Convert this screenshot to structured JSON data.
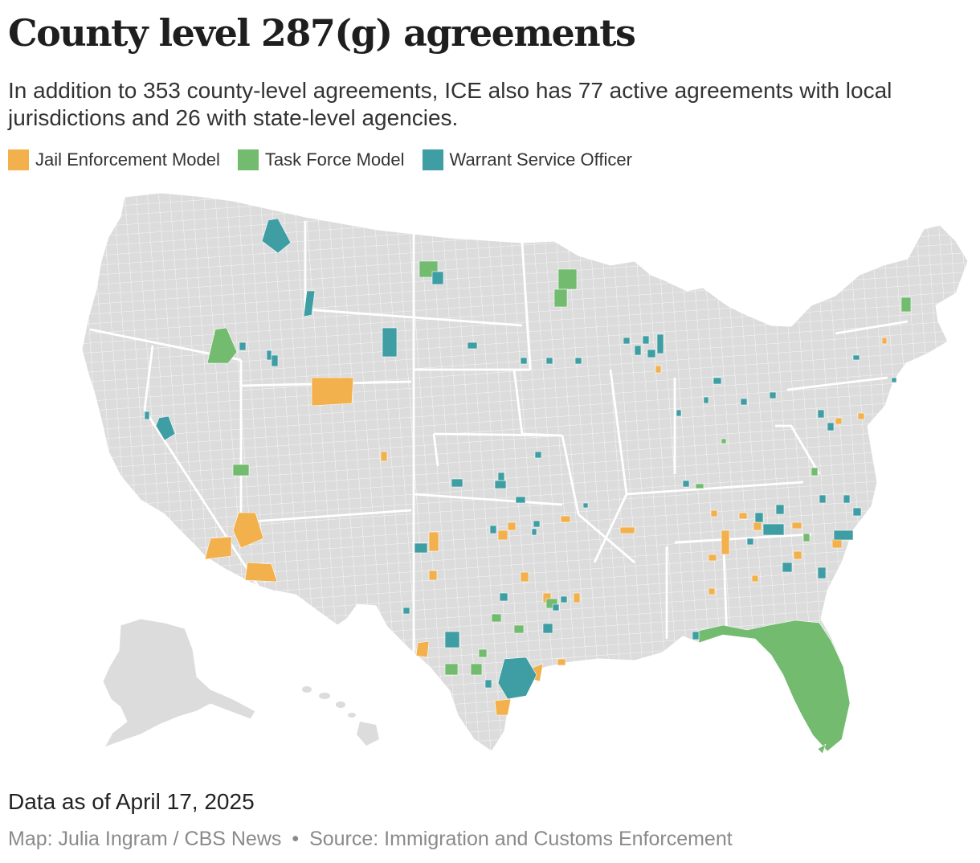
{
  "header": {
    "title": "County level 287(g) agreements",
    "subtitle": "In addition to 353 county-level agreements, ICE also has 77 active agreements with local jurisdictions and 26 with state-level agencies."
  },
  "legend": {
    "items": [
      {
        "label": "Jail Enforcement Model",
        "color": "#f2b14c"
      },
      {
        "label": "Task Force Model",
        "color": "#72bb6f"
      },
      {
        "label": "Warrant Service Officer",
        "color": "#3e9ea3"
      }
    ]
  },
  "map": {
    "base_color": "#dcdcdc",
    "border_color": "#ffffff",
    "regions_shown": [
      "Contiguous United States",
      "Alaska",
      "Hawaii"
    ]
  },
  "footer": {
    "data_note": "Data as of April 17, 2025",
    "credit_map": "Map: Julia Ingram / CBS News",
    "credit_separator": "•",
    "credit_source": "Source: Immigration and Customs Enforcement"
  }
}
